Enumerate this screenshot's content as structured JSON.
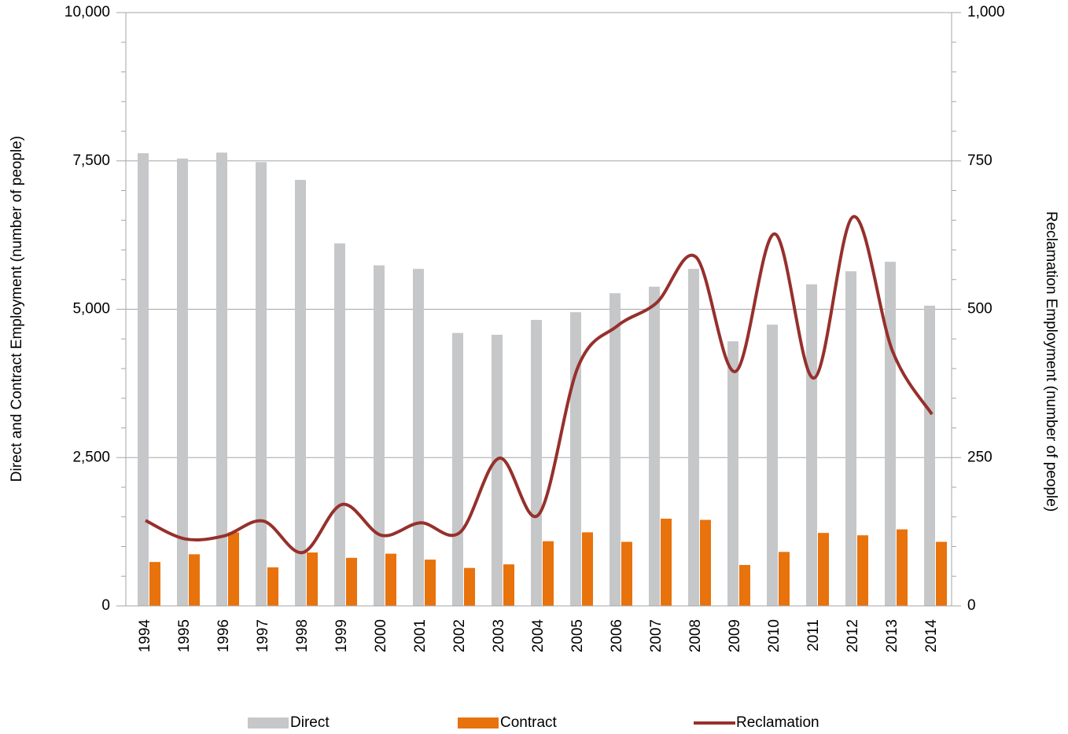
{
  "chart_data": {
    "type": "bar_line",
    "categories": [
      "1994",
      "1995",
      "1996",
      "1997",
      "1998",
      "1999",
      "2000",
      "2001",
      "2002",
      "2003",
      "2004",
      "2005",
      "2006",
      "2007",
      "2008",
      "2009",
      "2010",
      "2011",
      "2012",
      "2013",
      "2014"
    ],
    "series": [
      {
        "name": "Direct",
        "color": "#c6c7c9",
        "type": "bar",
        "values": [
          7630,
          7540,
          7640,
          7480,
          7180,
          6110,
          5740,
          5680,
          4600,
          4570,
          4820,
          4950,
          5270,
          5380,
          5680,
          4460,
          4740,
          5420,
          5640,
          5800,
          5060
        ]
      },
      {
        "name": "Contract",
        "color": "#e8720c",
        "type": "bar",
        "values": [
          740,
          870,
          1240,
          650,
          900,
          810,
          880,
          780,
          640,
          700,
          1090,
          1240,
          1080,
          1470,
          1450,
          690,
          910,
          1230,
          1190,
          1290,
          1080
        ]
      },
      {
        "name": "Reclamation",
        "color": "#96302c",
        "type": "line",
        "axis": "y2",
        "values": [
          144,
          113,
          118,
          143,
          90,
          171,
          119,
          140,
          124,
          249,
          154,
          403,
          472,
          511,
          588,
          395,
          627,
          384,
          656,
          429,
          323
        ]
      }
    ],
    "ylabel": "Direct and Contract Employment (number of people)",
    "y2label": "Reclamation Employment (number of people)",
    "ylim": [
      0,
      10000
    ],
    "yticks": [
      0,
      {
        "value": 2500,
        "label": "2,500"
      },
      {
        "value": 5000,
        "label": "5,000"
      },
      {
        "value": 7500,
        "label": "7,500"
      },
      {
        "value": 10000,
        "label": "10,000"
      }
    ],
    "y2lim": [
      0,
      1000
    ],
    "y2ticks": [
      0,
      250,
      500,
      750,
      {
        "value": 1000,
        "label": "1,000"
      }
    ],
    "grid": true,
    "legend": "bottom"
  }
}
